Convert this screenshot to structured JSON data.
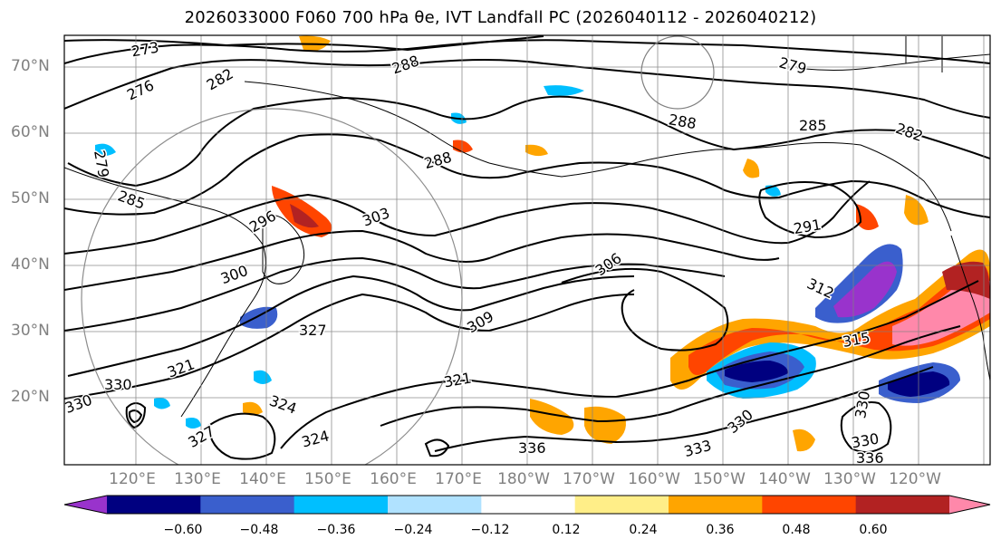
{
  "title": "2026033000 F060 700 hPa θe, IVT Landfall PC (2026040112 - 2026040212)",
  "lat_labels": [
    "70°N",
    "60°N",
    "50°N",
    "40°N",
    "30°N",
    "20°N"
  ],
  "lon_labels": [
    "120°E",
    "130°E",
    "140°E",
    "150°E",
    "160°E",
    "170°E",
    "180°W",
    "170°W",
    "160°W",
    "150°W",
    "140°W",
    "130°W",
    "120°W"
  ],
  "contour_labels": [
    "273",
    "276",
    "282",
    "288",
    "279",
    "285",
    "282",
    "288",
    "288",
    "285",
    "291",
    "279",
    "296",
    "303",
    "300",
    "306",
    "312",
    "309",
    "315",
    "327",
    "321",
    "330",
    "321",
    "324",
    "324",
    "327",
    "333",
    "336",
    "330",
    "330",
    "330",
    "330",
    "336"
  ],
  "colorbar": {
    "ticks": [
      "−0.60",
      "−0.48",
      "−0.36",
      "−0.24",
      "−0.12",
      "0.12",
      "0.24",
      "0.36",
      "0.48",
      "0.60"
    ],
    "colors": [
      "#9933cc",
      "#000080",
      "#3a5fcd",
      "#00bfff",
      "#b0e2ff",
      "#ffffff",
      "#ffee88",
      "#ffa500",
      "#ff4500",
      "#b22222",
      "#ff88aa"
    ]
  },
  "colors": {
    "contour": "#000000",
    "graticule": "#808080",
    "coast": "#000000"
  }
}
